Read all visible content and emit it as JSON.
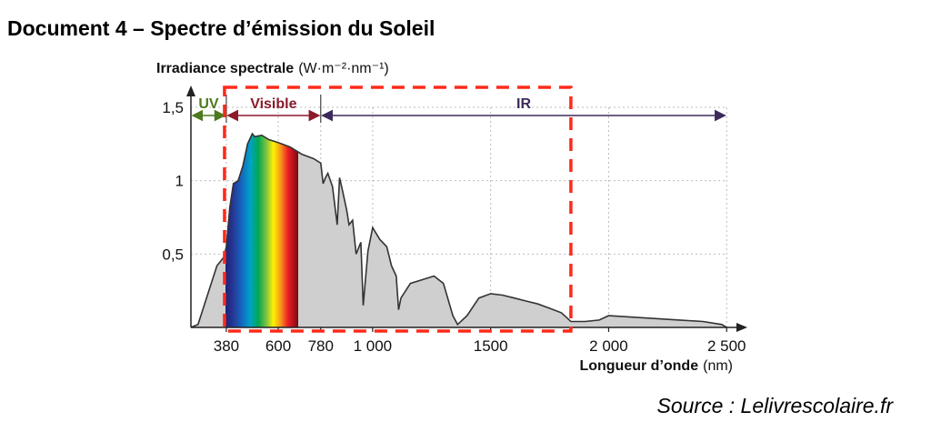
{
  "document_title": "Document 4 – Spectre d’émission du Soleil",
  "source": "Source : Lelivrescolaire.fr",
  "chart_data": {
    "type": "area",
    "ylabel_main": "Irradiance spectrale",
    "ylabel_unit": "(W·m⁻²·nm⁻¹)",
    "xlabel_main": "Longueur d’onde",
    "xlabel_unit": "(nm)",
    "x_ticks": [
      {
        "value": 380,
        "label": "380"
      },
      {
        "value": 600,
        "label": "600"
      },
      {
        "value": 780,
        "label": "780"
      },
      {
        "value": 1000,
        "label": "1 000"
      },
      {
        "value": 1500,
        "label": "1500"
      },
      {
        "value": 2000,
        "label": "2 000"
      },
      {
        "value": 2500,
        "label": "2 500"
      }
    ],
    "y_ticks": [
      {
        "value": 0.5,
        "label": "0,5"
      },
      {
        "value": 1,
        "label": "1"
      },
      {
        "value": 1.5,
        "label": "1,5"
      }
    ],
    "bands": [
      {
        "label": "UV",
        "from": 230,
        "to": 380,
        "color": "#4d7a1e"
      },
      {
        "label": "Visible",
        "from": 380,
        "to": 780,
        "color": "#8b1a2b"
      },
      {
        "label": "IR",
        "from": 780,
        "to": 2500,
        "color": "#3d2a5c"
      }
    ],
    "highlight_box": {
      "x_from": 380,
      "x_to": 1840,
      "color": "#ff2a1a"
    },
    "series": [
      {
        "x": [
          230,
          260,
          300,
          340,
          370,
          380,
          395,
          410,
          430,
          450,
          470,
          490,
          500,
          530,
          560,
          600,
          650,
          700,
          750,
          780,
          790,
          800,
          810,
          830,
          850,
          860,
          870,
          890,
          900,
          915,
          930,
          950,
          960,
          980,
          1000,
          1030,
          1060,
          1080,
          1100,
          1110,
          1120,
          1140,
          1160,
          1200,
          1260,
          1300,
          1340,
          1360,
          1380,
          1400,
          1450,
          1500,
          1550,
          1600,
          1650,
          1700,
          1750,
          1800,
          1820,
          1840,
          1900,
          1960,
          2000,
          2100,
          2200,
          2300,
          2400,
          2480,
          2500
        ],
        "y": [
          0.0,
          0.02,
          0.22,
          0.42,
          0.48,
          0.55,
          0.82,
          0.98,
          1.0,
          1.1,
          1.25,
          1.32,
          1.3,
          1.31,
          1.28,
          1.26,
          1.23,
          1.18,
          1.15,
          1.12,
          0.98,
          1.02,
          1.05,
          0.96,
          0.7,
          1.02,
          0.95,
          0.8,
          0.7,
          0.73,
          0.5,
          0.58,
          0.15,
          0.52,
          0.68,
          0.6,
          0.55,
          0.42,
          0.35,
          0.12,
          0.2,
          0.25,
          0.3,
          0.32,
          0.35,
          0.3,
          0.08,
          0.02,
          0.05,
          0.08,
          0.2,
          0.23,
          0.22,
          0.2,
          0.18,
          0.16,
          0.13,
          0.1,
          0.07,
          0.04,
          0.04,
          0.05,
          0.08,
          0.07,
          0.06,
          0.05,
          0.04,
          0.02,
          0.0
        ]
      }
    ],
    "xlim": [
      230,
      2580
    ],
    "ylim": [
      0,
      1.5
    ],
    "grid": true,
    "grid_style": "dotted"
  }
}
